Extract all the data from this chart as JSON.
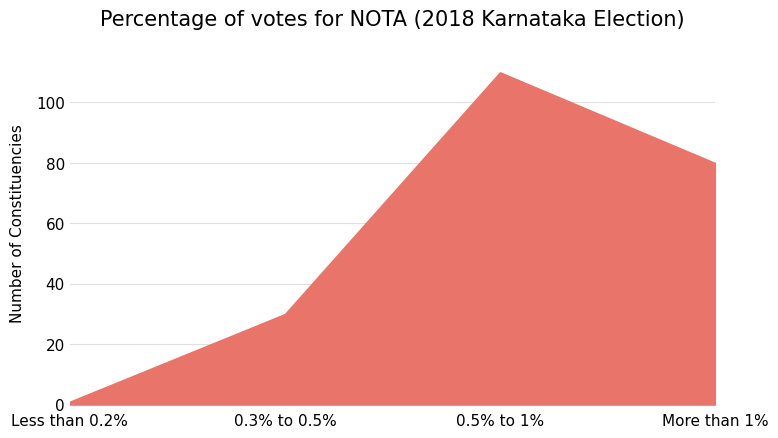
{
  "title": "Percentage of votes for NOTA (2018 Karnataka Election)",
  "xlabel": "",
  "ylabel": "Number of Constituencies",
  "categories": [
    "Less than 0.2%",
    "0.3% to 0.5%",
    "0.5% to 1%",
    "More than 1%"
  ],
  "values": [
    1,
    30,
    110,
    80
  ],
  "fill_color": "#e8746a",
  "background_color": "#ffffff",
  "grid_color": "#e0e0e0",
  "ylim": [
    0,
    120
  ],
  "yticks": [
    0,
    20,
    40,
    60,
    80,
    100
  ],
  "title_fontsize": 15,
  "ylabel_fontsize": 11,
  "tick_fontsize": 11
}
